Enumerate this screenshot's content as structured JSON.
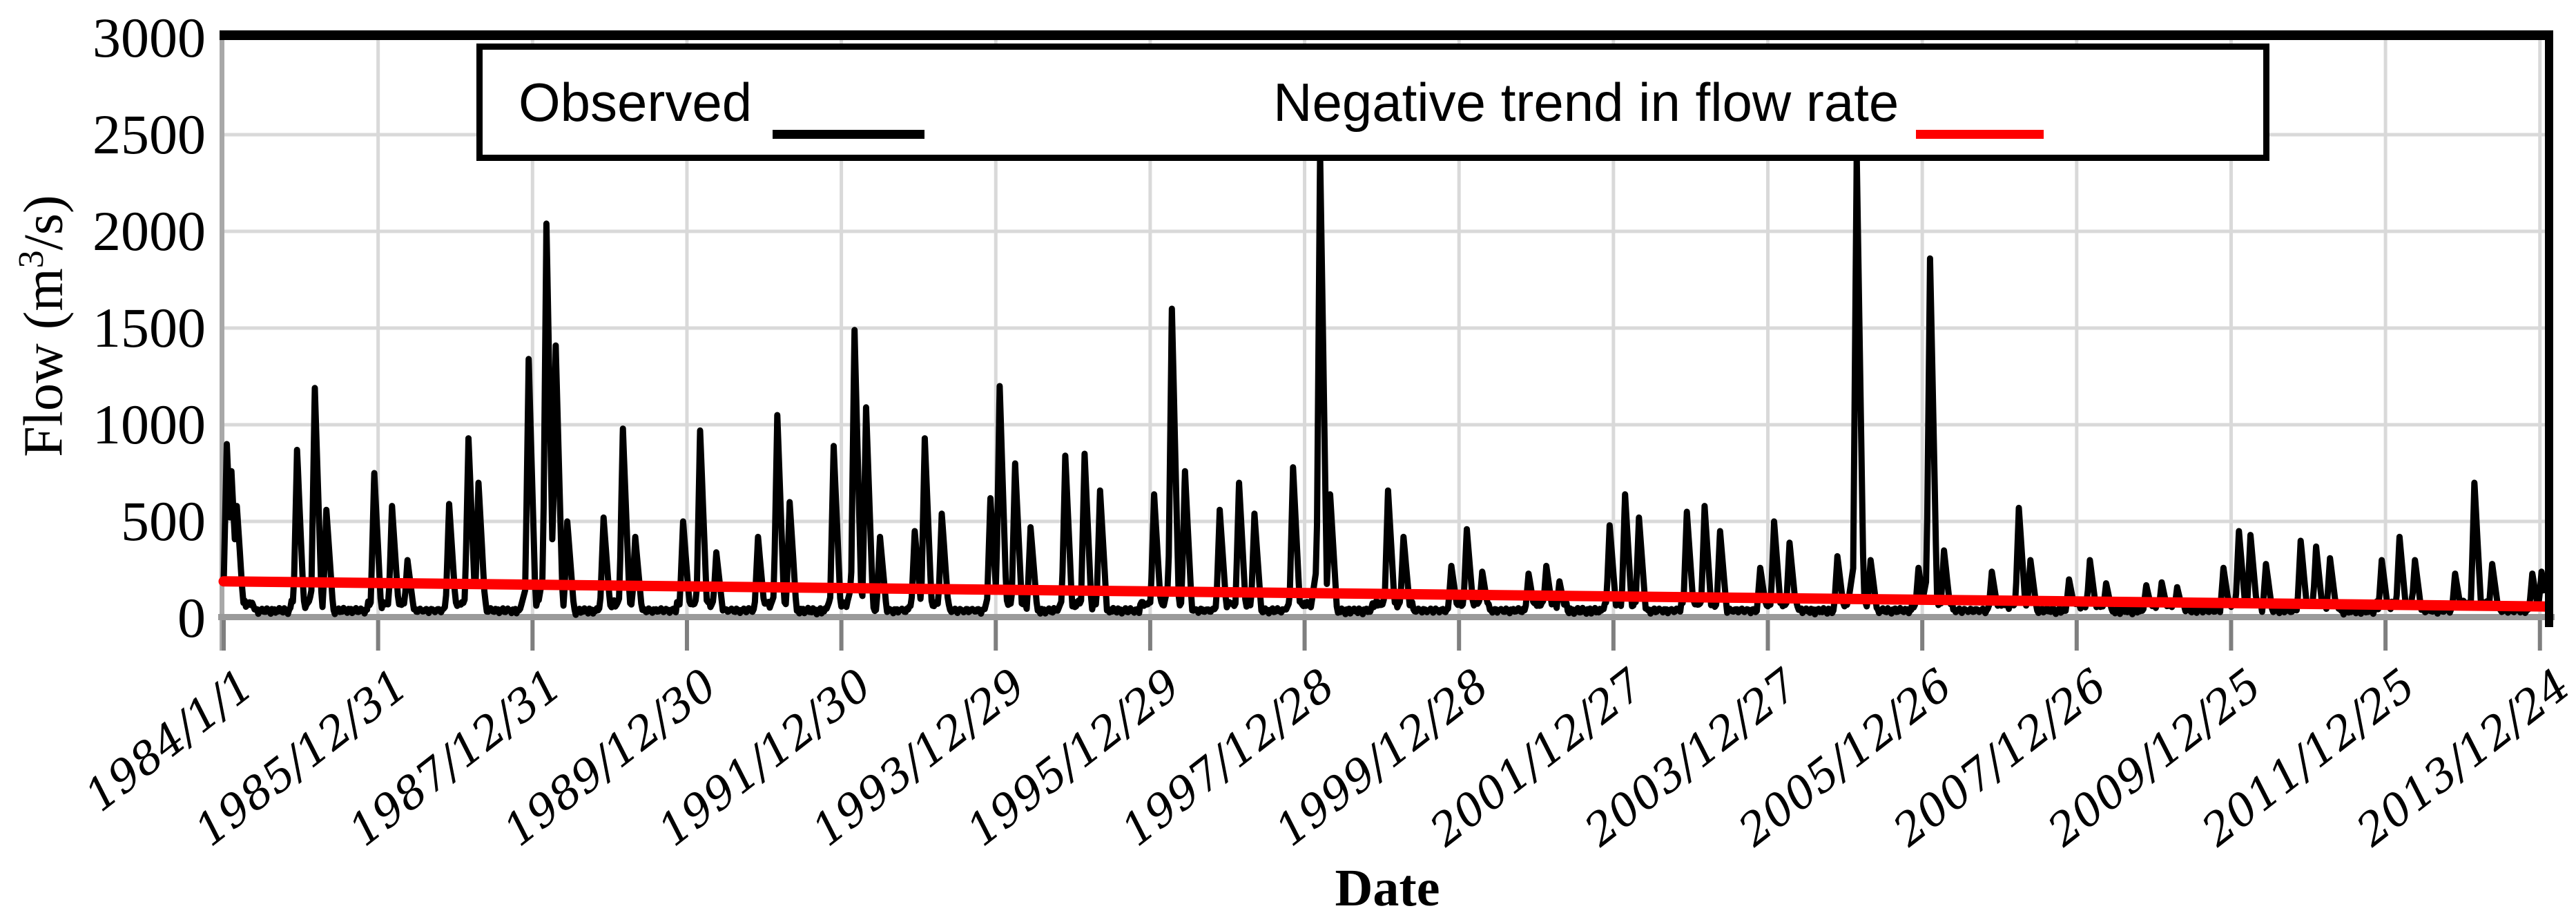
{
  "chart_data": {
    "type": "line",
    "title": "",
    "xlabel": "Date",
    "ylabel": "Flow (m³/s)",
    "ylabel_parts": {
      "prefix": "Flow (m",
      "sup": "3",
      "suffix": "/s)"
    },
    "ylim": [
      0,
      3000
    ],
    "y_tick_step": 500,
    "y_tick_labels": [
      "0",
      "500",
      "1000",
      "1500",
      "2000",
      "2500",
      "3000"
    ],
    "x_tick_labels": [
      "1984/1/1",
      "1985/12/31",
      "1987/12/31",
      "1989/12/30",
      "1991/12/30",
      "1993/12/29",
      "1995/12/29",
      "1997/12/28",
      "1999/12/28",
      "2001/12/27",
      "2003/12/27",
      "2005/12/26",
      "2007/12/26",
      "2009/12/25",
      "2011/12/25",
      "2013/12/24"
    ],
    "x_tick_interval_years": 2,
    "x_start_year": 1984.0,
    "x_end_year": 2014.08,
    "grid": true,
    "legend_position": "top-inside",
    "colors": {
      "observed": "#000000",
      "trend": "#fe0000",
      "gridline": "#d9d9d9",
      "axis": "#9a9a9a",
      "tick": "#7f7f7f"
    },
    "series": [
      {
        "name": "Observed",
        "color": "#000000",
        "style": "daily hydrograph line",
        "flood_events": [
          [
            1984.04,
            900
          ],
          [
            1984.1,
            760
          ],
          [
            1984.17,
            580
          ],
          [
            1984.95,
            870
          ],
          [
            1985.18,
            1190
          ],
          [
            1985.33,
            560
          ],
          [
            1985.95,
            750
          ],
          [
            1986.18,
            580
          ],
          [
            1986.38,
            300
          ],
          [
            1986.92,
            590
          ],
          [
            1987.17,
            930
          ],
          [
            1987.3,
            700
          ],
          [
            1987.95,
            1340
          ],
          [
            1988.18,
            2040
          ],
          [
            1988.3,
            1410
          ],
          [
            1988.45,
            500
          ],
          [
            1988.92,
            520
          ],
          [
            1989.17,
            980
          ],
          [
            1989.33,
            420
          ],
          [
            1989.95,
            500
          ],
          [
            1990.17,
            970
          ],
          [
            1990.38,
            340
          ],
          [
            1990.92,
            420
          ],
          [
            1991.17,
            1050
          ],
          [
            1991.33,
            600
          ],
          [
            1991.9,
            890
          ],
          [
            1992.17,
            1490
          ],
          [
            1992.32,
            1090
          ],
          [
            1992.5,
            420
          ],
          [
            1992.95,
            450
          ],
          [
            1993.08,
            930
          ],
          [
            1993.3,
            540
          ],
          [
            1993.93,
            620
          ],
          [
            1994.05,
            1200
          ],
          [
            1994.25,
            800
          ],
          [
            1994.45,
            470
          ],
          [
            1994.9,
            840
          ],
          [
            1995.15,
            850
          ],
          [
            1995.35,
            660
          ],
          [
            1996.05,
            640
          ],
          [
            1996.28,
            1600
          ],
          [
            1996.45,
            760
          ],
          [
            1996.9,
            560
          ],
          [
            1997.15,
            700
          ],
          [
            1997.35,
            540
          ],
          [
            1997.85,
            780
          ],
          [
            1998.2,
            2400
          ],
          [
            1998.33,
            640
          ],
          [
            1999.08,
            660
          ],
          [
            1999.28,
            420
          ],
          [
            1999.9,
            270
          ],
          [
            2000.1,
            460
          ],
          [
            2000.3,
            240
          ],
          [
            2000.9,
            230
          ],
          [
            2001.13,
            270
          ],
          [
            2001.3,
            190
          ],
          [
            2001.95,
            480
          ],
          [
            2002.15,
            640
          ],
          [
            2002.33,
            520
          ],
          [
            2002.95,
            550
          ],
          [
            2003.18,
            580
          ],
          [
            2003.38,
            450
          ],
          [
            2003.9,
            260
          ],
          [
            2004.08,
            500
          ],
          [
            2004.28,
            390
          ],
          [
            2004.9,
            320
          ],
          [
            2005.15,
            2400
          ],
          [
            2005.33,
            300
          ],
          [
            2005.95,
            260
          ],
          [
            2006.1,
            1860
          ],
          [
            2006.28,
            350
          ],
          [
            2006.9,
            240
          ],
          [
            2007.25,
            570
          ],
          [
            2007.4,
            300
          ],
          [
            2007.9,
            200
          ],
          [
            2008.17,
            300
          ],
          [
            2008.38,
            180
          ],
          [
            2008.9,
            170
          ],
          [
            2009.1,
            185
          ],
          [
            2009.3,
            160
          ],
          [
            2009.9,
            260
          ],
          [
            2010.1,
            450
          ],
          [
            2010.25,
            430
          ],
          [
            2010.45,
            280
          ],
          [
            2010.9,
            400
          ],
          [
            2011.1,
            370
          ],
          [
            2011.28,
            310
          ],
          [
            2011.95,
            300
          ],
          [
            2012.18,
            420
          ],
          [
            2012.38,
            300
          ],
          [
            2012.9,
            230
          ],
          [
            2013.15,
            700
          ],
          [
            2013.38,
            280
          ],
          [
            2013.9,
            230
          ],
          [
            2014.02,
            240
          ]
        ]
      },
      {
        "name": "Negative trend in flow rate",
        "color": "#fe0000",
        "style": "linear trend",
        "trend_start_flow": 190,
        "trend_end_flow": 60
      }
    ]
  }
}
